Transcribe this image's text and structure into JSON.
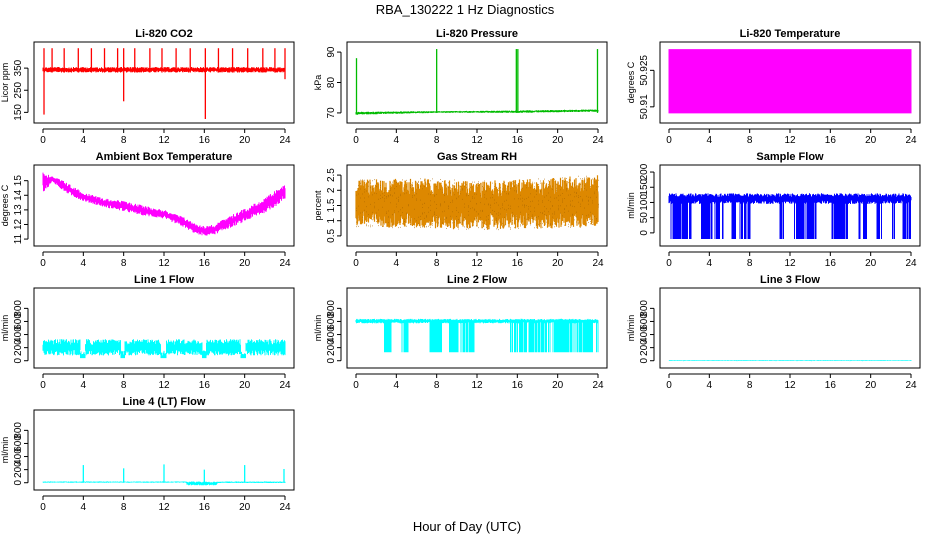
{
  "figure": {
    "title": "RBA_130222  1 Hz Diagnostics",
    "xlabel": "Hour of Day (UTC)"
  },
  "chart_data": [
    {
      "id": "co2",
      "type": "line",
      "title": "Li-820 CO2",
      "ylabel": "Licor ppm",
      "color": "#ff0000",
      "xlim": [
        0,
        24
      ],
      "ylim": [
        120,
        450
      ],
      "xticks": [
        0,
        4,
        8,
        12,
        16,
        20,
        24
      ],
      "yticks": [
        150,
        250,
        350
      ],
      "series": {
        "name": "CO2",
        "style": "band",
        "x": [
          0,
          24
        ],
        "low": [
          330,
          330
        ],
        "high": [
          355,
          355
        ]
      },
      "spikes": [
        {
          "x": 0.1,
          "low": 140,
          "high": 440
        },
        {
          "x": 0.9,
          "low": 330,
          "high": 440
        },
        {
          "x": 2.1,
          "low": 330,
          "high": 440
        },
        {
          "x": 3.5,
          "low": 330,
          "high": 440
        },
        {
          "x": 4.8,
          "low": 330,
          "high": 440
        },
        {
          "x": 6.1,
          "low": 330,
          "high": 440
        },
        {
          "x": 7.4,
          "low": 330,
          "high": 440
        },
        {
          "x": 8.0,
          "low": 200,
          "high": 440
        },
        {
          "x": 9.1,
          "low": 330,
          "high": 440
        },
        {
          "x": 10.6,
          "low": 330,
          "high": 440
        },
        {
          "x": 11.8,
          "low": 330,
          "high": 440
        },
        {
          "x": 13.2,
          "low": 330,
          "high": 440
        },
        {
          "x": 14.6,
          "low": 330,
          "high": 440
        },
        {
          "x": 16.1,
          "low": 120,
          "high": 440
        },
        {
          "x": 17.4,
          "low": 330,
          "high": 440
        },
        {
          "x": 18.8,
          "low": 330,
          "high": 440
        },
        {
          "x": 20.3,
          "low": 330,
          "high": 440
        },
        {
          "x": 21.8,
          "low": 330,
          "high": 440
        },
        {
          "x": 23.0,
          "low": 330,
          "high": 440
        },
        {
          "x": 24.0,
          "low": 300,
          "high": 440
        }
      ]
    },
    {
      "id": "pressure",
      "type": "line",
      "title": "Li-820 Pressure",
      "ylabel": "kPa",
      "color": "#00bb00",
      "xlim": [
        0,
        24
      ],
      "ylim": [
        68,
        92
      ],
      "xticks": [
        0,
        4,
        8,
        12,
        16,
        20,
        24
      ],
      "yticks": [
        70,
        80,
        90
      ],
      "series": {
        "name": "Pressure",
        "style": "band",
        "x": [
          0,
          8,
          16,
          24
        ],
        "low": [
          69.4,
          70.0,
          70.0,
          70.4
        ],
        "high": [
          70.4,
          70.6,
          70.8,
          71.2
        ]
      },
      "spikes": [
        {
          "x": 0.05,
          "low": 70,
          "high": 88
        },
        {
          "x": 8.0,
          "low": 70,
          "high": 91
        },
        {
          "x": 15.9,
          "low": 70,
          "high": 91
        },
        {
          "x": 16.05,
          "low": 70,
          "high": 91
        },
        {
          "x": 23.95,
          "low": 70,
          "high": 91
        }
      ]
    },
    {
      "id": "licor_temp",
      "type": "area",
      "title": "Li-820 Temperature",
      "ylabel": "degrees C",
      "color": "#ff00ff",
      "xlim": [
        0,
        24
      ],
      "ylim": [
        50.905,
        50.935
      ],
      "xticks": [
        0,
        4,
        8,
        12,
        16,
        20,
        24
      ],
      "yticks": [
        50.91,
        50.925
      ],
      "series": {
        "name": "Temperature",
        "style": "band",
        "x": [
          0,
          24
        ],
        "low": [
          50.9075,
          50.9075
        ],
        "high": [
          50.9335,
          50.9335
        ]
      },
      "spikes": []
    },
    {
      "id": "ambient",
      "type": "line",
      "title": "Ambient Box Temperature",
      "ylabel": "degrees C",
      "color": "#ff00ff",
      "xlim": [
        0,
        24
      ],
      "ylim": [
        10.8,
        15.8
      ],
      "xticks": [
        0,
        4,
        8,
        12,
        16,
        20,
        24
      ],
      "yticks": [
        11,
        12,
        13,
        14,
        15
      ],
      "series": {
        "name": "Ambient",
        "style": "band",
        "x": [
          0,
          1,
          2,
          3,
          4,
          6,
          8,
          10,
          12,
          14,
          15,
          16,
          17,
          18,
          20,
          22,
          23,
          24
        ],
        "low": [
          14.2,
          14.9,
          14.3,
          13.9,
          13.6,
          13.2,
          12.9,
          12.6,
          12.4,
          11.8,
          11.4,
          11.2,
          11.3,
          11.6,
          12.2,
          12.8,
          13.2,
          13.7
        ],
        "high": [
          15.6,
          15.3,
          15.0,
          14.6,
          14.2,
          13.8,
          13.6,
          13.3,
          13.0,
          12.5,
          12.1,
          11.9,
          12.0,
          12.4,
          13.1,
          13.8,
          14.3,
          14.9
        ]
      },
      "spikes": []
    },
    {
      "id": "rh",
      "type": "scatter",
      "title": "Gas Stream RH",
      "ylabel": "percent",
      "color": "#dd8800",
      "xlim": [
        0,
        24
      ],
      "ylim": [
        0.3,
        2.7
      ],
      "xticks": [
        0,
        4,
        8,
        12,
        16,
        20,
        24
      ],
      "yticks": [
        0.5,
        1.0,
        1.5,
        2.0,
        2.5
      ],
      "series": {
        "name": "RH",
        "style": "band",
        "x": [
          0,
          6,
          12,
          18,
          24
        ],
        "low": [
          0.8,
          0.75,
          0.7,
          0.72,
          0.8
        ],
        "high": [
          2.35,
          2.4,
          2.3,
          2.4,
          2.5
        ]
      },
      "spikes": []
    },
    {
      "id": "sample",
      "type": "line",
      "title": "Sample Flow",
      "ylabel": "ml/min",
      "color": "#0000ff",
      "xlim": [
        0,
        24
      ],
      "ylim": [
        -30,
        210
      ],
      "xticks": [
        0,
        4,
        8,
        12,
        16,
        20,
        24
      ],
      "yticks": [
        0,
        50,
        100,
        150,
        200
      ],
      "series": {
        "name": "Sample",
        "style": "band",
        "x": [
          0,
          24
        ],
        "low": [
          95,
          95
        ],
        "high": [
          130,
          130
        ]
      },
      "dropouts": [
        [
          0.1,
          2.2
        ],
        [
          3.2,
          5.4
        ],
        [
          6.1,
          6.6
        ],
        [
          7.0,
          8.2
        ],
        [
          11.0,
          11.4
        ],
        [
          12.3,
          14.6
        ],
        [
          16.1,
          17.8
        ],
        [
          18.8,
          19.6
        ],
        [
          20.6,
          21.1
        ],
        [
          22.1,
          22.4
        ],
        [
          23.2,
          24.0
        ]
      ],
      "dropout_low": -20,
      "spikes": []
    },
    {
      "id": "line1",
      "type": "line",
      "title": "Line 1 Flow",
      "ylabel": "ml/min",
      "color": "#00ffff",
      "xlim": [
        0,
        24
      ],
      "ylim": [
        -50,
        1050
      ],
      "xticks": [
        0,
        4,
        8,
        12,
        16,
        20,
        24
      ],
      "yticks": [
        0,
        200,
        400,
        600,
        800
      ],
      "series": {
        "name": "Line 1",
        "style": "band",
        "x": [
          0,
          24
        ],
        "low": [
          80,
          80
        ],
        "high": [
          330,
          330
        ]
      },
      "gaps": [
        [
          3.7,
          4.2
        ],
        [
          7.7,
          8.1
        ],
        [
          11.7,
          12.2
        ],
        [
          15.8,
          16.2
        ],
        [
          19.6,
          20.1
        ]
      ],
      "spikes": []
    },
    {
      "id": "line2",
      "type": "line",
      "title": "Line 2 Flow",
      "ylabel": "ml/min",
      "color": "#00ffff",
      "xlim": [
        0,
        24
      ],
      "ylim": [
        -50,
        1050
      ],
      "xticks": [
        0,
        4,
        8,
        12,
        16,
        20,
        24
      ],
      "yticks": [
        0,
        200,
        400,
        600,
        800
      ],
      "series": {
        "name": "Line 2",
        "style": "band",
        "x": [
          0,
          24
        ],
        "low": [
          570,
          570
        ],
        "high": [
          640,
          640
        ]
      },
      "dropouts": [
        [
          2.8,
          3.7
        ],
        [
          4.4,
          5.2
        ],
        [
          7.3,
          8.5
        ],
        [
          9.2,
          11.8
        ],
        [
          15.3,
          24.0
        ]
      ],
      "dropout_low": 130,
      "spikes": []
    },
    {
      "id": "line3",
      "type": "line",
      "title": "Line 3 Flow",
      "ylabel": "ml/min",
      "color": "#00ffff",
      "xlim": [
        0,
        24
      ],
      "ylim": [
        -50,
        1050
      ],
      "xticks": [
        0,
        4,
        8,
        12,
        16,
        20,
        24
      ],
      "yticks": [
        0,
        200,
        400,
        600,
        800
      ],
      "series": {
        "name": "Line 3",
        "style": "band",
        "x": [
          0,
          24
        ],
        "low": [
          -5,
          -5
        ],
        "high": [
          8,
          8
        ]
      },
      "spikes": []
    },
    {
      "id": "line4",
      "type": "line",
      "title": "Line 4 (LT) Flow",
      "ylabel": "ml/min",
      "color": "#00ffff",
      "xlim": [
        0,
        24
      ],
      "ylim": [
        -50,
        1050
      ],
      "xticks": [
        0,
        4,
        8,
        12,
        16,
        20,
        24
      ],
      "yticks": [
        0,
        200,
        400,
        600,
        800
      ],
      "series": {
        "name": "Line 4",
        "style": "band",
        "x": [
          0,
          14.2,
          14.3,
          17.2,
          17.3,
          24
        ],
        "low": [
          0,
          0,
          -40,
          -40,
          -5,
          -5
        ],
        "high": [
          20,
          20,
          20,
          20,
          20,
          20
        ]
      },
      "spikes": [
        {
          "x": 4.0,
          "low": 0,
          "high": 270
        },
        {
          "x": 8.0,
          "low": 0,
          "high": 220
        },
        {
          "x": 12.0,
          "low": 0,
          "high": 280
        },
        {
          "x": 16.0,
          "low": 0,
          "high": 200
        },
        {
          "x": 20.0,
          "low": 0,
          "high": 270
        },
        {
          "x": 23.9,
          "low": 0,
          "high": 210
        }
      ]
    }
  ]
}
